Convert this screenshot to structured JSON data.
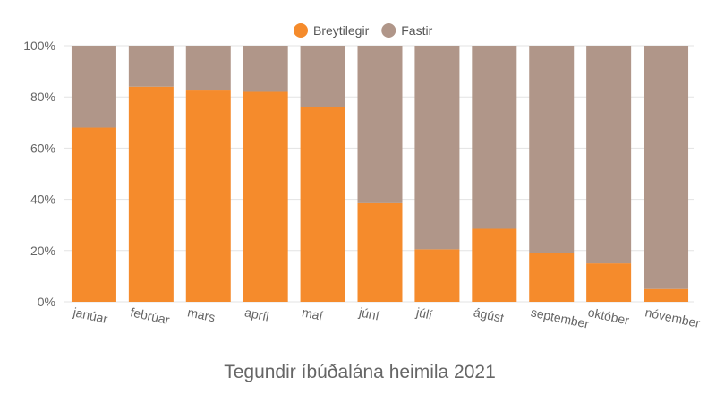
{
  "chart_data": {
    "type": "bar",
    "stacked": true,
    "normalized": true,
    "title": "Tegundir íbúðalána heimila 2021",
    "xlabel": "",
    "ylabel": "",
    "ylim": [
      0,
      100
    ],
    "y_ticks": [
      "0%",
      "20%",
      "40%",
      "60%",
      "80%",
      "100%"
    ],
    "grid": true,
    "legend_position": "top-center",
    "categories": [
      "janúar",
      "febrúar",
      "mars",
      "apríl",
      "maí",
      "júní",
      "júlí",
      "ágúst",
      "september",
      "október",
      "nóvember"
    ],
    "series": [
      {
        "name": "Breytilegir",
        "color": "#f58b2c",
        "values": [
          68,
          84,
          82.5,
          82,
          76,
          38.5,
          20.5,
          28.5,
          19,
          15,
          5
        ]
      },
      {
        "name": "Fastir",
        "color": "#b09689",
        "values": [
          32,
          16,
          17.5,
          18,
          24,
          61.5,
          79.5,
          71.5,
          81,
          85,
          95
        ]
      }
    ]
  }
}
